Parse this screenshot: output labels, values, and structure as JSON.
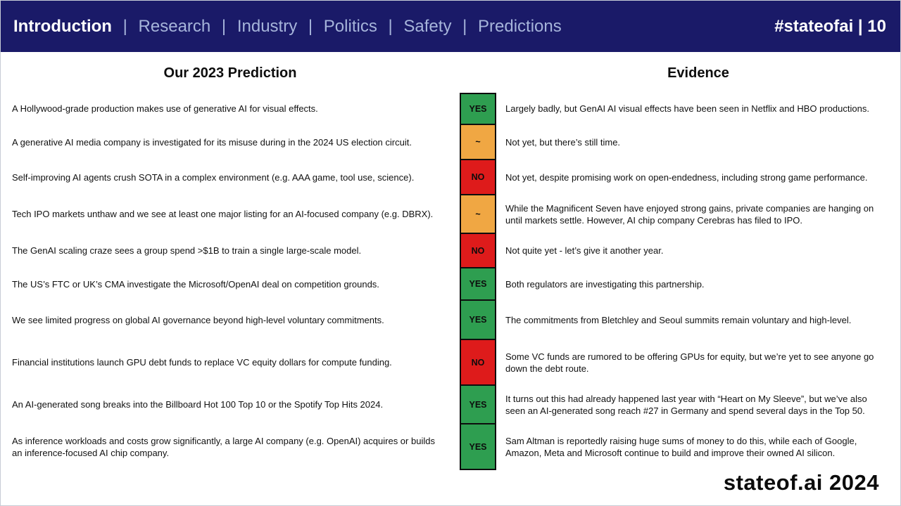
{
  "header": {
    "active_item": "Introduction",
    "items": [
      "Research",
      "Industry",
      "Politics",
      "Safety",
      "Predictions"
    ],
    "separator": "|",
    "badge": "#stateofai | 10"
  },
  "columns": {
    "prediction": "Our 2023 Prediction",
    "evidence": "Evidence"
  },
  "status_colors": {
    "YES": "#2e9e50",
    "~": "#f0a743",
    "NO": "#de1b1b"
  },
  "rows": [
    {
      "prediction": "A Hollywood-grade production makes use of generative AI for visual effects.",
      "status": "YES",
      "evidence": "Largely badly, but GenAI AI visual effects have been seen in Netflix and HBO productions."
    },
    {
      "prediction": "A generative AI media company is investigated for its misuse during in the 2024 US election circuit.",
      "status": "~",
      "evidence": "Not yet, but there’s still time."
    },
    {
      "prediction": "Self-improving AI agents crush SOTA in a complex environment (e.g. AAA game, tool use, science).",
      "status": "NO",
      "evidence": "Not yet, despite promising work on open-endedness, including strong game performance."
    },
    {
      "prediction": "Tech IPO markets unthaw and we see at least one major listing for an AI-focused company (e.g. DBRX).",
      "status": "~",
      "evidence": "While the Magnificent Seven have enjoyed strong gains, private companies are hanging on until markets settle. However, AI chip company Cerebras has filed to IPO."
    },
    {
      "prediction": "The GenAI scaling craze sees a group spend >$1B to train a single large-scale model.",
      "status": "NO",
      "evidence": "Not quite yet - let’s give it another year."
    },
    {
      "prediction": "The US’s FTC or UK’s CMA investigate the Microsoft/OpenAI deal on competition grounds.",
      "status": "YES",
      "evidence": "Both regulators are investigating this partnership."
    },
    {
      "prediction": "We see limited progress on global AI governance beyond high-level voluntary commitments.",
      "status": "YES",
      "evidence": "The commitments from Bletchley and Seoul summits remain voluntary and high-level."
    },
    {
      "prediction": "Financial institutions launch GPU debt funds to replace VC equity dollars for compute funding.",
      "status": "NO",
      "evidence": "Some VC funds are rumored to be offering GPUs for equity, but we’re yet to see anyone go down the debt route."
    },
    {
      "prediction": "An AI-generated song breaks into the Billboard Hot 100 Top 10 or the Spotify Top Hits 2024.",
      "status": "YES",
      "evidence": "It turns out this had already happened last year with “Heart on My Sleeve”, but we’ve also seen an AI-generated song reach #27 in Germany and spend several days in the Top 50."
    },
    {
      "prediction": "As inference workloads and costs grow significantly, a large AI company (e.g. OpenAI) acquires or builds an inference-focused AI chip company.",
      "status": "YES",
      "evidence": "Sam Altman is reportedly raising huge sums of money to do this, while each of Google, Amazon, Meta and Microsoft continue to build and improve their owned AI silicon."
    }
  ],
  "footer": {
    "brand": "stateof.ai 2024"
  }
}
